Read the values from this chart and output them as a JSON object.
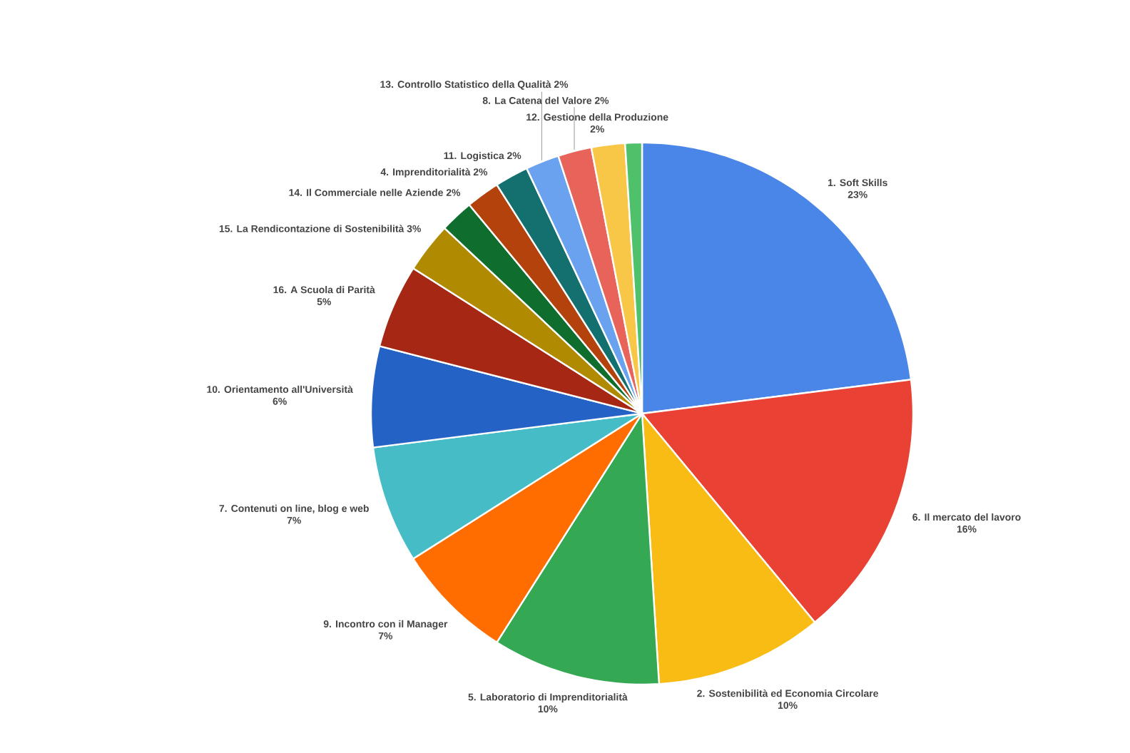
{
  "chart_data": {
    "type": "pie",
    "categories": [
      "1. Soft Skills",
      "6. Il mercato del lavoro",
      "2. Sostenibilità ed Economia Circolare",
      "5. Laboratorio di Imprenditorialità",
      "9. Incontro con il Manager",
      "7. Contenuti on line, blog e web",
      "10. Orientamento all'Università",
      "16. A  Scuola di Parità",
      "15. La Rendicontazione di Sostenibilità",
      "14. Il Commerciale nelle Aziende",
      "4. Imprenditorialità",
      "11. Logistica",
      "13. Controllo Statistico della Qualità",
      "8. La Catena del Valore",
      "12. Gestione della Produzione",
      null
    ],
    "values": [
      23,
      16,
      10,
      10,
      7,
      7,
      6,
      5,
      3,
      2,
      2,
      2,
      2,
      2,
      2,
      1
    ],
    "value_labels": [
      "23%",
      "16%",
      "10%",
      "10%",
      "7%",
      "7%",
      "6%",
      "5%",
      "3%",
      "2%",
      "2%",
      "2%",
      "2%",
      "2%",
      "2%",
      null
    ],
    "colors": [
      "#4a86e8",
      "#e94235",
      "#f9bc15",
      "#34a853",
      "#ff6d00",
      "#46bdc6",
      "#2463c5",
      "#a52714",
      "#b08a00",
      "#0f6e2d",
      "#b3420c",
      "#13706f",
      "#6aa2f0",
      "#e8635a",
      "#f8c747",
      "#4fc16b"
    ]
  }
}
